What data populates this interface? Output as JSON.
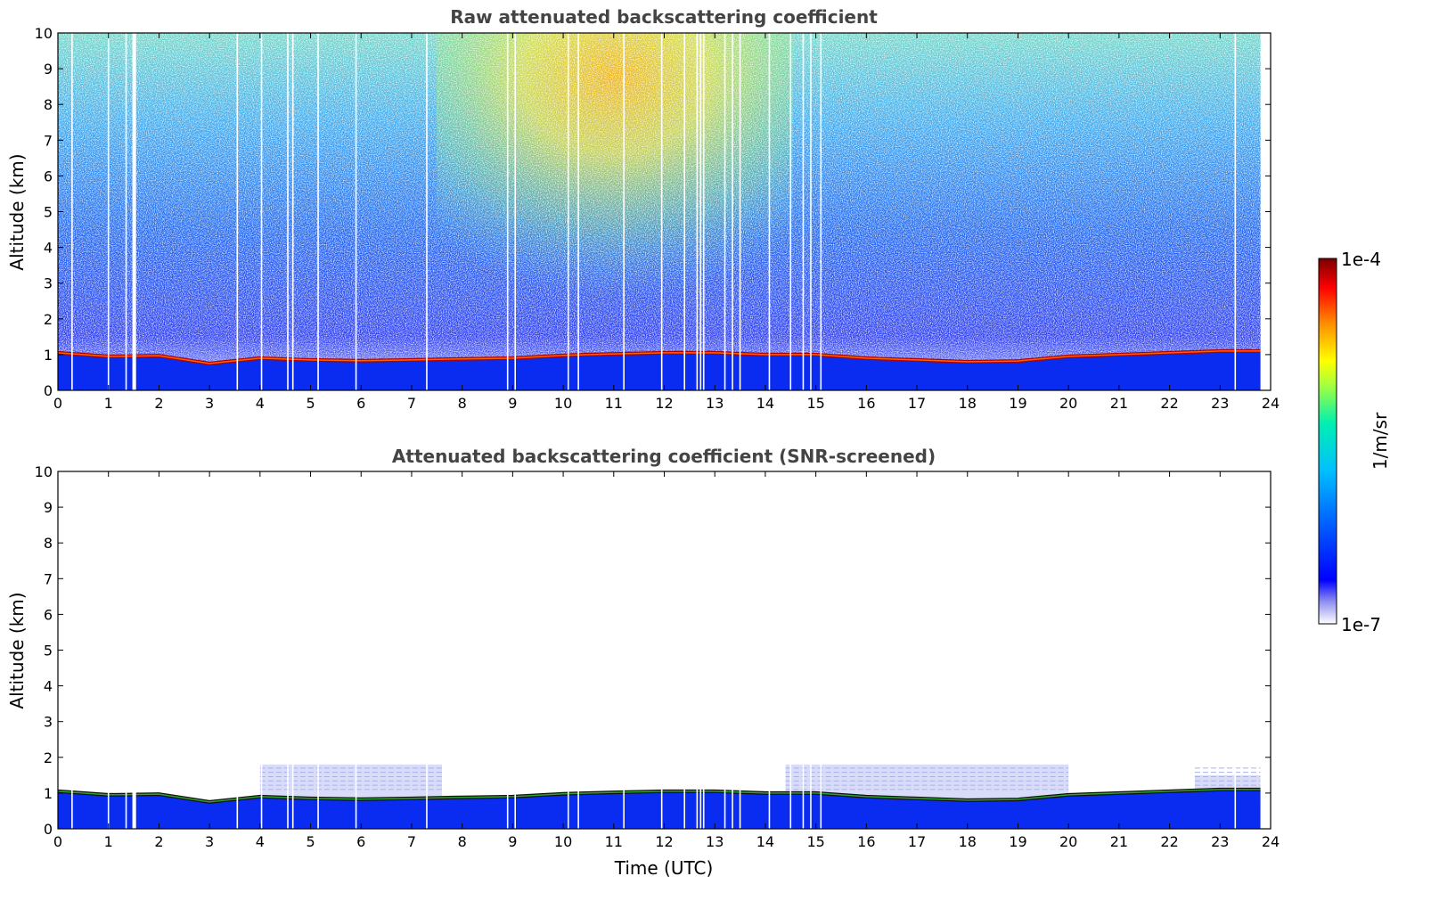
{
  "chart_data": [
    {
      "type": "heatmap",
      "title": "Raw attenuated backscattering coefficient",
      "xlabel": "",
      "ylabel": "Altitude (km)",
      "xlim": [
        0,
        24
      ],
      "ylim": [
        0,
        10
      ],
      "xticks": [
        "0",
        "1",
        "2",
        "3",
        "4",
        "5",
        "6",
        "7",
        "8",
        "9",
        "10",
        "11",
        "12",
        "13",
        "14",
        "15",
        "16",
        "17",
        "18",
        "19",
        "20",
        "21",
        "22",
        "23",
        "24"
      ],
      "yticks": [
        "0",
        "1",
        "2",
        "3",
        "4",
        "5",
        "6",
        "7",
        "8",
        "9",
        "10"
      ],
      "boundary_layer_top_km": [
        [
          0,
          1.05
        ],
        [
          1,
          0.95
        ],
        [
          2,
          0.97
        ],
        [
          3,
          0.75
        ],
        [
          4,
          0.9
        ],
        [
          5,
          0.85
        ],
        [
          6,
          0.83
        ],
        [
          7,
          0.85
        ],
        [
          8,
          0.88
        ],
        [
          9,
          0.9
        ],
        [
          10,
          0.98
        ],
        [
          11,
          1.02
        ],
        [
          12,
          1.05
        ],
        [
          13,
          1.05
        ],
        [
          14,
          1.0
        ],
        [
          15,
          1.0
        ],
        [
          16,
          0.9
        ],
        [
          17,
          0.85
        ],
        [
          18,
          0.8
        ],
        [
          19,
          0.82
        ],
        [
          20,
          0.95
        ],
        [
          21,
          1.0
        ],
        [
          22,
          1.05
        ],
        [
          23,
          1.1
        ],
        [
          24,
          1.1
        ]
      ],
      "high_signal_region_time_utc": [
        7.8,
        14.2
      ],
      "data_gaps_time_utc": [
        0.28,
        1.0,
        1.35,
        1.5,
        1.52,
        3.55,
        4.03,
        4.55,
        4.65,
        5.15,
        5.9,
        7.3,
        8.9,
        9.05,
        10.1,
        10.3,
        11.2,
        11.95,
        12.4,
        12.65,
        12.72,
        12.78,
        13.2,
        13.35,
        13.5,
        14.08,
        14.5,
        14.75,
        14.9,
        15.1,
        23.3
      ]
    },
    {
      "type": "heatmap",
      "title": "Attenuated backscattering coefficient (SNR-screened)",
      "xlabel": "Time (UTC)",
      "ylabel": "Altitude (km)",
      "xlim": [
        0,
        24
      ],
      "ylim": [
        0,
        10
      ],
      "xticks": [
        "0",
        "1",
        "2",
        "3",
        "4",
        "5",
        "6",
        "7",
        "8",
        "9",
        "10",
        "11",
        "12",
        "13",
        "14",
        "15",
        "16",
        "17",
        "18",
        "19",
        "20",
        "21",
        "22",
        "23",
        "24"
      ],
      "yticks": [
        "0",
        "1",
        "2",
        "3",
        "4",
        "5",
        "6",
        "7",
        "8",
        "9",
        "10"
      ],
      "boundary_layer_top_km": [
        [
          0,
          1.05
        ],
        [
          1,
          0.95
        ],
        [
          2,
          0.97
        ],
        [
          3,
          0.75
        ],
        [
          4,
          0.9
        ],
        [
          5,
          0.85
        ],
        [
          6,
          0.83
        ],
        [
          7,
          0.85
        ],
        [
          8,
          0.88
        ],
        [
          9,
          0.9
        ],
        [
          10,
          0.98
        ],
        [
          11,
          1.02
        ],
        [
          12,
          1.05
        ],
        [
          13,
          1.05
        ],
        [
          14,
          1.0
        ],
        [
          15,
          1.0
        ],
        [
          16,
          0.9
        ],
        [
          17,
          0.85
        ],
        [
          18,
          0.8
        ],
        [
          19,
          0.82
        ],
        [
          20,
          0.95
        ],
        [
          21,
          1.0
        ],
        [
          22,
          1.05
        ],
        [
          23,
          1.1
        ],
        [
          24,
          1.1
        ]
      ],
      "residual_layer_segments": [
        [
          4.0,
          7.6,
          1.8
        ],
        [
          14.4,
          20.0,
          1.8
        ],
        [
          22.5,
          23.8,
          1.5
        ]
      ]
    }
  ],
  "colorbar": {
    "max_label": "1e-4",
    "min_label": "1e-7",
    "unit_label": "1/m/sr",
    "colormap": [
      "#ffffff",
      "#0000ff",
      "#00a0ff",
      "#00ffc8",
      "#c8ff00",
      "#ffa000",
      "#ff0000",
      "#800000"
    ]
  }
}
